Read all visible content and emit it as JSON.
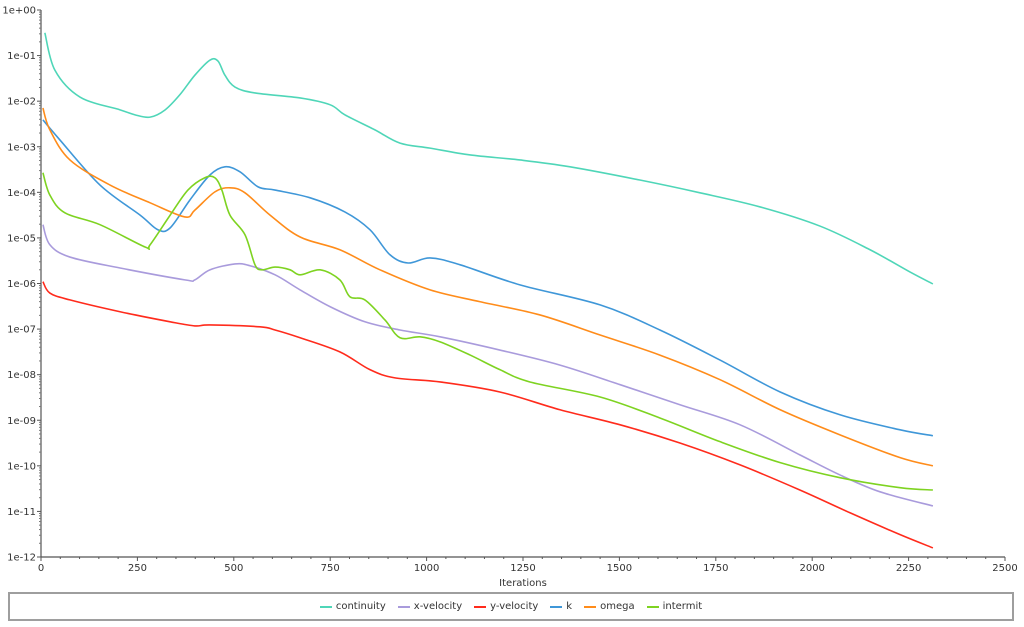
{
  "chart_data": {
    "type": "line",
    "title": "",
    "xlabel": "Iterations",
    "ylabel": "",
    "xlim": [
      0,
      2500
    ],
    "ylim_log10": [
      -12,
      0
    ],
    "yscale": "log",
    "x_ticks": [
      "0",
      "250",
      "500",
      "750",
      "1000",
      "1250",
      "1500",
      "1750",
      "2000",
      "2250",
      "2500"
    ],
    "y_ticks": [
      "1e+00",
      "1e-01",
      "1e-02",
      "1e-03",
      "1e-04",
      "1e-05",
      "1e-06",
      "1e-07",
      "1e-08",
      "1e-09",
      "1e-10",
      "1e-11",
      "1e-12"
    ],
    "legend_position": "bottom",
    "series": [
      {
        "name": "continuity",
        "color": "#4fd6b8",
        "points_log10": [
          [
            10,
            -0.5
          ],
          [
            36,
            -1.32
          ],
          [
            101,
            -1.91
          ],
          [
            205,
            -2.19
          ],
          [
            244,
            -2.3
          ],
          [
            283,
            -2.35
          ],
          [
            322,
            -2.19
          ],
          [
            360,
            -1.86
          ],
          [
            399,
            -1.43
          ],
          [
            438,
            -1.1
          ],
          [
            459,
            -1.12
          ],
          [
            477,
            -1.43
          ],
          [
            503,
            -1.69
          ],
          [
            555,
            -1.82
          ],
          [
            672,
            -1.93
          ],
          [
            750,
            -2.08
          ],
          [
            788,
            -2.3
          ],
          [
            866,
            -2.63
          ],
          [
            931,
            -2.92
          ],
          [
            1009,
            -3.03
          ],
          [
            1113,
            -3.18
          ],
          [
            1242,
            -3.29
          ],
          [
            1372,
            -3.44
          ],
          [
            1553,
            -3.73
          ],
          [
            1709,
            -4.01
          ],
          [
            1865,
            -4.32
          ],
          [
            2020,
            -4.74
          ],
          [
            2150,
            -5.26
          ],
          [
            2254,
            -5.75
          ],
          [
            2313,
            -6.01
          ]
        ]
      },
      {
        "name": "x-velocity",
        "color": "#a99bdc",
        "points_log10": [
          [
            5,
            -4.71
          ],
          [
            23,
            -5.15
          ],
          [
            75,
            -5.42
          ],
          [
            205,
            -5.66
          ],
          [
            373,
            -5.92
          ],
          [
            399,
            -5.92
          ],
          [
            438,
            -5.7
          ],
          [
            503,
            -5.57
          ],
          [
            542,
            -5.61
          ],
          [
            607,
            -5.81
          ],
          [
            672,
            -6.14
          ],
          [
            750,
            -6.51
          ],
          [
            840,
            -6.84
          ],
          [
            931,
            -7.02
          ],
          [
            1035,
            -7.17
          ],
          [
            1190,
            -7.46
          ],
          [
            1346,
            -7.79
          ],
          [
            1502,
            -8.22
          ],
          [
            1657,
            -8.66
          ],
          [
            1813,
            -9.1
          ],
          [
            1968,
            -9.76
          ],
          [
            2072,
            -10.2
          ],
          [
            2176,
            -10.57
          ],
          [
            2313,
            -10.88
          ]
        ]
      },
      {
        "name": "y-velocity",
        "color": "#ff2b1c",
        "points_log10": [
          [
            5,
            -5.96
          ],
          [
            23,
            -6.21
          ],
          [
            75,
            -6.36
          ],
          [
            205,
            -6.62
          ],
          [
            335,
            -6.84
          ],
          [
            399,
            -6.93
          ],
          [
            438,
            -6.91
          ],
          [
            568,
            -6.95
          ],
          [
            607,
            -7.02
          ],
          [
            672,
            -7.19
          ],
          [
            775,
            -7.5
          ],
          [
            853,
            -7.89
          ],
          [
            918,
            -8.07
          ],
          [
            1035,
            -8.16
          ],
          [
            1190,
            -8.38
          ],
          [
            1346,
            -8.77
          ],
          [
            1502,
            -9.1
          ],
          [
            1657,
            -9.5
          ],
          [
            1813,
            -9.98
          ],
          [
            1968,
            -10.53
          ],
          [
            2098,
            -11.03
          ],
          [
            2228,
            -11.51
          ],
          [
            2313,
            -11.8
          ]
        ]
      },
      {
        "name": "k",
        "color": "#3f97d8",
        "points_log10": [
          [
            5,
            -2.41
          ],
          [
            49,
            -2.85
          ],
          [
            153,
            -3.84
          ],
          [
            257,
            -4.5
          ],
          [
            303,
            -4.82
          ],
          [
            335,
            -4.78
          ],
          [
            386,
            -4.17
          ],
          [
            438,
            -3.62
          ],
          [
            477,
            -3.44
          ],
          [
            516,
            -3.55
          ],
          [
            563,
            -3.88
          ],
          [
            607,
            -3.95
          ],
          [
            698,
            -4.12
          ],
          [
            788,
            -4.43
          ],
          [
            853,
            -4.82
          ],
          [
            905,
            -5.37
          ],
          [
            952,
            -5.55
          ],
          [
            1009,
            -5.44
          ],
          [
            1087,
            -5.59
          ],
          [
            1242,
            -6.03
          ],
          [
            1450,
            -6.47
          ],
          [
            1605,
            -7.02
          ],
          [
            1761,
            -7.68
          ],
          [
            1917,
            -8.38
          ],
          [
            2072,
            -8.88
          ],
          [
            2228,
            -9.21
          ],
          [
            2313,
            -9.34
          ]
        ]
      },
      {
        "name": "omega",
        "color": "#ff8c1a",
        "points_log10": [
          [
            5,
            -2.15
          ],
          [
            23,
            -2.63
          ],
          [
            75,
            -3.29
          ],
          [
            179,
            -3.84
          ],
          [
            283,
            -4.23
          ],
          [
            373,
            -4.54
          ],
          [
            399,
            -4.39
          ],
          [
            451,
            -3.99
          ],
          [
            490,
            -3.9
          ],
          [
            529,
            -4.01
          ],
          [
            594,
            -4.5
          ],
          [
            672,
            -4.98
          ],
          [
            775,
            -5.26
          ],
          [
            879,
            -5.7
          ],
          [
            1009,
            -6.14
          ],
          [
            1139,
            -6.4
          ],
          [
            1294,
            -6.69
          ],
          [
            1450,
            -7.13
          ],
          [
            1605,
            -7.57
          ],
          [
            1761,
            -8.11
          ],
          [
            1917,
            -8.77
          ],
          [
            2072,
            -9.32
          ],
          [
            2228,
            -9.82
          ],
          [
            2313,
            -10.0
          ]
        ]
      },
      {
        "name": "intermit",
        "color": "#7ed321",
        "points_log10": [
          [
            5,
            -3.57
          ],
          [
            23,
            -4.06
          ],
          [
            62,
            -4.45
          ],
          [
            153,
            -4.71
          ],
          [
            270,
            -5.2
          ],
          [
            283,
            -5.15
          ],
          [
            335,
            -4.5
          ],
          [
            381,
            -3.95
          ],
          [
            425,
            -3.68
          ],
          [
            451,
            -3.68
          ],
          [
            469,
            -3.95
          ],
          [
            490,
            -4.5
          ],
          [
            529,
            -4.93
          ],
          [
            555,
            -5.59
          ],
          [
            573,
            -5.7
          ],
          [
            607,
            -5.64
          ],
          [
            646,
            -5.7
          ],
          [
            672,
            -5.81
          ],
          [
            724,
            -5.7
          ],
          [
            775,
            -5.92
          ],
          [
            801,
            -6.29
          ],
          [
            840,
            -6.36
          ],
          [
            892,
            -6.8
          ],
          [
            931,
            -7.19
          ],
          [
            983,
            -7.17
          ],
          [
            1035,
            -7.28
          ],
          [
            1113,
            -7.57
          ],
          [
            1190,
            -7.89
          ],
          [
            1268,
            -8.16
          ],
          [
            1450,
            -8.49
          ],
          [
            1605,
            -8.95
          ],
          [
            1761,
            -9.47
          ],
          [
            1917,
            -9.93
          ],
          [
            2072,
            -10.26
          ],
          [
            2228,
            -10.48
          ],
          [
            2313,
            -10.53
          ]
        ]
      }
    ]
  }
}
